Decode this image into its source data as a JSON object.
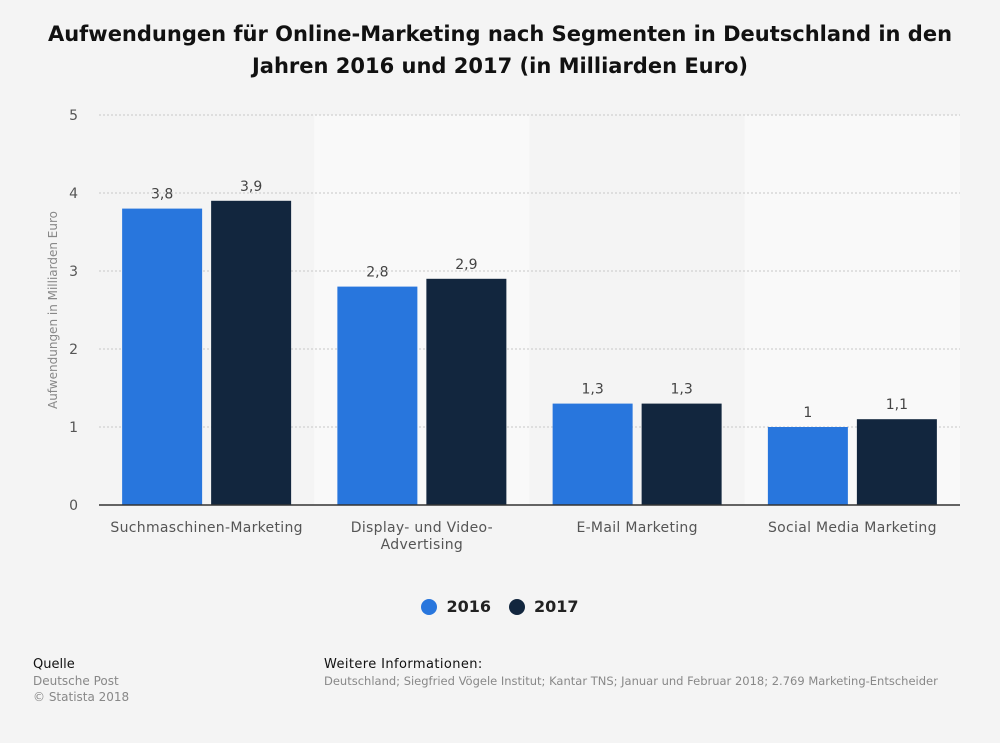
{
  "title": "Aufwendungen für Online-Marketing nach Segmenten in Deutschland in den Jahren 2016 und 2017 (in Milliarden Euro)",
  "legend": [
    {
      "label": "2016",
      "color": "#2876dd"
    },
    {
      "label": "2017",
      "color": "#12263e"
    }
  ],
  "source": {
    "heading": "Quelle",
    "line1": "Deutsche Post",
    "line2": "© Statista 2018"
  },
  "info": {
    "heading": "Weitere Informationen:",
    "text": "Deutschland; Siegfried Vögele Institut; Kantar TNS; Januar und Februar 2018; 2.769 Marketing-Entscheider"
  },
  "chart_data": {
    "type": "bar",
    "title": "Aufwendungen für Online-Marketing nach Segmenten in Deutschland in den Jahren 2016 und 2017 (in Milliarden Euro)",
    "xlabel": "",
    "ylabel": "Aufwendungen in Milliarden Euro",
    "ylim": [
      0,
      5
    ],
    "yticks": [
      0,
      1,
      2,
      3,
      4,
      5
    ],
    "categories": [
      [
        "Suchmaschinen-Marketing"
      ],
      [
        "Display- und Video-",
        "Advertising"
      ],
      [
        "E-Mail Marketing"
      ],
      [
        "Social Media Marketing"
      ]
    ],
    "series": [
      {
        "name": "2016",
        "color": "#2876dd",
        "values": [
          3.8,
          2.8,
          1.3,
          1.0
        ],
        "labels": [
          "3,8",
          "2,8",
          "1,3",
          "1"
        ]
      },
      {
        "name": "2017",
        "color": "#12263e",
        "values": [
          3.9,
          2.9,
          1.3,
          1.1
        ],
        "labels": [
          "3,9",
          "2,9",
          "1,3",
          "1,1"
        ]
      }
    ],
    "grid": true,
    "legend_position": "bottom"
  }
}
